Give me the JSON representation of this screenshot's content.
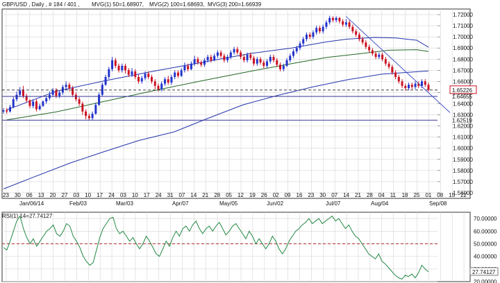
{
  "header": {
    "symbol_text": "GBP/USD , Daily , # 184 / 401 ,",
    "mvg1_text": "MVG(1) 50=1.68907,",
    "mvg2_text": "MVG(2) 100=1.68693,",
    "mvg3_text": "MVG(3) 200=1.66939"
  },
  "rsi_header": "RSI(1) 14=27.74127",
  "colors": {
    "bull": "#2233cc",
    "bear": "#cc1122",
    "ma50": "#2233aa",
    "ma100": "#226622",
    "ma200": "#2233aa",
    "rsi": "#228844",
    "trend": "#4455cc",
    "support": "#333399",
    "rsi_level": "#aa1111",
    "grid": "#d4d4d4",
    "frame": "#333333"
  },
  "chart_data": [
    {
      "type": "candlestick",
      "title": "GBP/USD , Daily",
      "ylim": [
        1.555,
        1.725
      ],
      "grid": true,
      "y_ticks": [
        "1.72000",
        "1.71000",
        "1.70000",
        "1.69000",
        "1.68000",
        "1.67000",
        "1.66000",
        "1.65000",
        "1.64000",
        "1.63000",
        "1.62000",
        "1.61000",
        "1.60000",
        "1.59000",
        "1.58000",
        "1.57000",
        "1.56000"
      ],
      "x_day_labels": [
        "23",
        "30",
        "06",
        "13",
        "20",
        "27",
        "03",
        "10",
        "17",
        "24",
        "03",
        "10",
        "17",
        "24",
        "31",
        "07",
        "14",
        "21",
        "28",
        "05",
        "12",
        "19",
        "26",
        "02",
        "09",
        "16",
        "23",
        "30",
        "07",
        "14",
        "21",
        "28",
        "04",
        "11",
        "18",
        "25",
        "01",
        "08",
        "15",
        "22"
      ],
      "x_month_labels": [
        "Jan/06/14",
        "Feb/03",
        "Mar/03",
        "Apr/07",
        "May/05",
        "Jun/02",
        "Jul/07",
        "Aug/04",
        "Sep/08"
      ],
      "price_labels": [
        {
          "text": "1.65226",
          "value": 1.65226,
          "color": "#cc1122",
          "boxed": true
        },
        {
          "text": "1.64655",
          "value": 1.64655,
          "color": "#333399",
          "boxed": false
        },
        {
          "text": "1.62519",
          "value": 1.62519,
          "color": "#333399",
          "boxed": false
        }
      ],
      "horizontal_lines": [
        {
          "value": 1.64655,
          "style": "solid"
        },
        {
          "value": 1.62519,
          "style": "solid"
        },
        {
          "value": 1.65226,
          "style": "dashed"
        }
      ],
      "trendline": {
        "from": [
          "Jul/15",
          1.7185
        ],
        "to": [
          "Sep/22",
          1.632
        ]
      },
      "moving_averages": [
        {
          "name": "MVG(1) 50",
          "last": 1.68907,
          "points": [
            [
              10,
              1.6345
            ],
            [
              80,
              1.651
            ],
            [
              150,
              1.6605
            ],
            [
              220,
              1.669
            ],
            [
              290,
              1.677
            ],
            [
              360,
              1.685
            ],
            [
              420,
              1.69
            ],
            [
              470,
              1.6955
            ],
            [
              500,
              1.698
            ],
            [
              540,
              1.6995
            ],
            [
              570,
              1.699
            ],
            [
              600,
              1.697
            ],
            [
              617,
              1.6907
            ]
          ]
        },
        {
          "name": "MVG(2) 100",
          "last": 1.68693,
          "points": [
            [
              10,
              1.6255
            ],
            [
              80,
              1.6325
            ],
            [
              150,
              1.642
            ],
            [
              220,
              1.6515
            ],
            [
              290,
              1.6605
            ],
            [
              360,
              1.669
            ],
            [
              420,
              1.676
            ],
            [
              470,
              1.6815
            ],
            [
              520,
              1.685
            ],
            [
              560,
              1.688
            ],
            [
              600,
              1.6885
            ],
            [
              617,
              1.6869
            ]
          ]
        },
        {
          "name": "MVG(3) 200",
          "last": 1.66939,
          "points": [
            [
              5,
              1.5635
            ],
            [
              50,
              1.5745
            ],
            [
              100,
              1.5865
            ],
            [
              150,
              1.597
            ],
            [
              200,
              1.607
            ],
            [
              250,
              1.6145
            ],
            [
              300,
              1.627
            ],
            [
              350,
              1.639
            ],
            [
              400,
              1.6475
            ],
            [
              450,
              1.655
            ],
            [
              500,
              1.6615
            ],
            [
              550,
              1.6665
            ],
            [
              617,
              1.6694
            ]
          ]
        }
      ],
      "candles": [
        [
          1.633,
          1.634,
          1.636,
          1.631
        ],
        [
          1.634,
          1.633,
          1.636,
          1.631
        ],
        [
          1.633,
          1.637,
          1.639,
          1.632
        ],
        [
          1.637,
          1.644,
          1.646,
          1.636
        ],
        [
          1.644,
          1.648,
          1.651,
          1.642
        ],
        [
          1.648,
          1.652,
          1.655,
          1.646
        ],
        [
          1.652,
          1.647,
          1.656,
          1.645
        ],
        [
          1.647,
          1.643,
          1.649,
          1.641
        ],
        [
          1.643,
          1.638,
          1.644,
          1.636
        ],
        [
          1.638,
          1.642,
          1.644,
          1.636
        ],
        [
          1.642,
          1.635,
          1.644,
          1.633
        ],
        [
          1.635,
          1.638,
          1.64,
          1.634
        ],
        [
          1.638,
          1.642,
          1.643,
          1.637
        ],
        [
          1.642,
          1.645,
          1.647,
          1.64
        ],
        [
          1.645,
          1.648,
          1.651,
          1.643
        ],
        [
          1.648,
          1.652,
          1.654,
          1.646
        ],
        [
          1.652,
          1.647,
          1.654,
          1.645
        ],
        [
          1.647,
          1.65,
          1.652,
          1.645
        ],
        [
          1.65,
          1.655,
          1.657,
          1.648
        ],
        [
          1.655,
          1.657,
          1.66,
          1.652
        ],
        [
          1.657,
          1.654,
          1.659,
          1.651
        ],
        [
          1.654,
          1.648,
          1.656,
          1.646
        ],
        [
          1.648,
          1.644,
          1.65,
          1.642
        ],
        [
          1.644,
          1.64,
          1.646,
          1.638
        ],
        [
          1.64,
          1.633,
          1.642,
          1.63
        ],
        [
          1.633,
          1.629,
          1.635,
          1.626
        ],
        [
          1.629,
          1.627,
          1.631,
          1.6252
        ],
        [
          1.627,
          1.631,
          1.633,
          1.6255
        ],
        [
          1.631,
          1.639,
          1.641,
          1.63
        ],
        [
          1.639,
          1.648,
          1.65,
          1.638
        ],
        [
          1.648,
          1.657,
          1.659,
          1.647
        ],
        [
          1.657,
          1.664,
          1.666,
          1.656
        ],
        [
          1.664,
          1.671,
          1.673,
          1.662
        ],
        [
          1.671,
          1.679,
          1.682,
          1.669
        ],
        [
          1.679,
          1.674,
          1.681,
          1.672
        ],
        [
          1.674,
          1.67,
          1.676,
          1.668
        ],
        [
          1.67,
          1.674,
          1.676,
          1.668
        ],
        [
          1.674,
          1.67,
          1.676,
          1.667
        ],
        [
          1.67,
          1.666,
          1.672,
          1.664
        ],
        [
          1.666,
          1.669,
          1.672,
          1.664
        ],
        [
          1.669,
          1.664,
          1.671,
          1.662
        ],
        [
          1.664,
          1.66,
          1.666,
          1.658
        ],
        [
          1.66,
          1.663,
          1.665,
          1.658
        ],
        [
          1.663,
          1.667,
          1.669,
          1.661
        ],
        [
          1.667,
          1.664,
          1.669,
          1.662
        ],
        [
          1.664,
          1.66,
          1.666,
          1.658
        ],
        [
          1.66,
          1.656,
          1.662,
          1.653
        ],
        [
          1.656,
          1.653,
          1.658,
          1.651
        ],
        [
          1.653,
          1.658,
          1.66,
          1.651
        ],
        [
          1.658,
          1.662,
          1.664,
          1.656
        ],
        [
          1.662,
          1.659,
          1.665,
          1.657
        ],
        [
          1.659,
          1.664,
          1.666,
          1.657
        ],
        [
          1.664,
          1.668,
          1.67,
          1.662
        ],
        [
          1.668,
          1.665,
          1.67,
          1.663
        ],
        [
          1.665,
          1.67,
          1.672,
          1.664
        ],
        [
          1.67,
          1.674,
          1.677,
          1.668
        ],
        [
          1.674,
          1.671,
          1.676,
          1.669
        ],
        [
          1.671,
          1.676,
          1.678,
          1.67
        ],
        [
          1.676,
          1.68,
          1.683,
          1.674
        ],
        [
          1.68,
          1.677,
          1.682,
          1.675
        ],
        [
          1.677,
          1.675,
          1.679,
          1.673
        ],
        [
          1.675,
          1.679,
          1.681,
          1.673
        ],
        [
          1.679,
          1.682,
          1.684,
          1.677
        ],
        [
          1.682,
          1.679,
          1.684,
          1.677
        ],
        [
          1.679,
          1.683,
          1.685,
          1.678
        ],
        [
          1.683,
          1.686,
          1.688,
          1.681
        ],
        [
          1.686,
          1.683,
          1.688,
          1.681
        ],
        [
          1.683,
          1.679,
          1.685,
          1.677
        ],
        [
          1.679,
          1.682,
          1.684,
          1.677
        ],
        [
          1.682,
          1.686,
          1.688,
          1.68
        ],
        [
          1.686,
          1.689,
          1.691,
          1.684
        ],
        [
          1.689,
          1.686,
          1.691,
          1.684
        ],
        [
          1.686,
          1.682,
          1.688,
          1.68
        ],
        [
          1.682,
          1.679,
          1.684,
          1.677
        ],
        [
          1.679,
          1.684,
          1.686,
          1.677
        ],
        [
          1.684,
          1.681,
          1.686,
          1.679
        ],
        [
          1.681,
          1.676,
          1.683,
          1.674
        ],
        [
          1.676,
          1.68,
          1.682,
          1.674
        ],
        [
          1.68,
          1.677,
          1.682,
          1.675
        ],
        [
          1.677,
          1.674,
          1.679,
          1.672
        ],
        [
          1.674,
          1.678,
          1.68,
          1.672
        ],
        [
          1.678,
          1.682,
          1.684,
          1.676
        ],
        [
          1.682,
          1.679,
          1.684,
          1.677
        ],
        [
          1.679,
          1.675,
          1.681,
          1.673
        ],
        [
          1.675,
          1.671,
          1.677,
          1.669
        ],
        [
          1.671,
          1.674,
          1.676,
          1.669
        ],
        [
          1.674,
          1.679,
          1.681,
          1.673
        ],
        [
          1.679,
          1.683,
          1.685,
          1.677
        ],
        [
          1.683,
          1.687,
          1.689,
          1.681
        ],
        [
          1.687,
          1.69,
          1.692,
          1.685
        ],
        [
          1.69,
          1.694,
          1.696,
          1.688
        ],
        [
          1.694,
          1.698,
          1.7,
          1.692
        ],
        [
          1.698,
          1.702,
          1.704,
          1.696
        ],
        [
          1.702,
          1.7,
          1.704,
          1.698
        ],
        [
          1.7,
          1.704,
          1.706,
          1.698
        ],
        [
          1.704,
          1.708,
          1.71,
          1.702
        ],
        [
          1.708,
          1.705,
          1.71,
          1.703
        ],
        [
          1.705,
          1.709,
          1.711,
          1.703
        ],
        [
          1.709,
          1.713,
          1.715,
          1.707
        ],
        [
          1.713,
          1.717,
          1.719,
          1.711
        ],
        [
          1.717,
          1.715,
          1.7185,
          1.713
        ],
        [
          1.715,
          1.717,
          1.7185,
          1.713
        ],
        [
          1.717,
          1.714,
          1.718,
          1.712
        ],
        [
          1.714,
          1.711,
          1.716,
          1.709
        ],
        [
          1.711,
          1.713,
          1.716,
          1.709
        ],
        [
          1.713,
          1.709,
          1.715,
          1.707
        ],
        [
          1.709,
          1.705,
          1.711,
          1.703
        ],
        [
          1.705,
          1.702,
          1.707,
          1.7
        ],
        [
          1.702,
          1.698,
          1.704,
          1.696
        ],
        [
          1.698,
          1.695,
          1.7,
          1.693
        ],
        [
          1.695,
          1.691,
          1.697,
          1.689
        ],
        [
          1.691,
          1.688,
          1.693,
          1.686
        ],
        [
          1.688,
          1.685,
          1.69,
          1.683
        ],
        [
          1.685,
          1.682,
          1.687,
          1.68
        ],
        [
          1.682,
          1.684,
          1.686,
          1.68
        ],
        [
          1.684,
          1.68,
          1.686,
          1.678
        ],
        [
          1.68,
          1.676,
          1.682,
          1.674
        ],
        [
          1.676,
          1.673,
          1.678,
          1.671
        ],
        [
          1.673,
          1.668,
          1.675,
          1.666
        ],
        [
          1.668,
          1.664,
          1.67,
          1.662
        ],
        [
          1.664,
          1.66,
          1.666,
          1.658
        ],
        [
          1.66,
          1.656,
          1.662,
          1.654
        ],
        [
          1.656,
          1.654,
          1.658,
          1.652
        ],
        [
          1.654,
          1.657,
          1.659,
          1.652
        ],
        [
          1.657,
          1.655,
          1.659,
          1.653
        ],
        [
          1.655,
          1.658,
          1.66,
          1.653
        ],
        [
          1.658,
          1.656,
          1.66,
          1.654
        ],
        [
          1.656,
          1.66,
          1.662,
          1.654
        ],
        [
          1.66,
          1.657,
          1.662,
          1.655
        ],
        [
          1.657,
          1.6523,
          1.659,
          1.651
        ]
      ]
    },
    {
      "type": "line",
      "title": "RSI(1) 14=27.74127",
      "ylim": [
        20,
        75
      ],
      "y_ticks": [
        "70.00000",
        "60.00000",
        "50.00000",
        "40.00000",
        "30.00000",
        "20.00000"
      ],
      "last_value_label": "27.74127",
      "level_line": 50,
      "series": [
        {
          "values": [
            47,
            45,
            52,
            60,
            68,
            72,
            62,
            55,
            50,
            54,
            48,
            52,
            56,
            60,
            62,
            65,
            58,
            56,
            60,
            66,
            64,
            56,
            52,
            47,
            40,
            36,
            33,
            35,
            45,
            55,
            62,
            66,
            70,
            71,
            62,
            58,
            60,
            56,
            52,
            55,
            50,
            46,
            50,
            56,
            52,
            47,
            42,
            40,
            46,
            52,
            48,
            55,
            60,
            56,
            62,
            64,
            60,
            65,
            68,
            62,
            58,
            62,
            64,
            60,
            64,
            67,
            62,
            57,
            60,
            64,
            66,
            62,
            58,
            54,
            60,
            56,
            50,
            54,
            50,
            46,
            50,
            56,
            52,
            46,
            42,
            46,
            52,
            56,
            60,
            62,
            65,
            67,
            70,
            66,
            68,
            70,
            66,
            68,
            70,
            72,
            68,
            70,
            66,
            62,
            65,
            60,
            56,
            54,
            50,
            46,
            42,
            40,
            38,
            42,
            36,
            34,
            31,
            28,
            25,
            23,
            22,
            25,
            24,
            26,
            23,
            27,
            33,
            30,
            27.74
          ]
        }
      ]
    }
  ]
}
